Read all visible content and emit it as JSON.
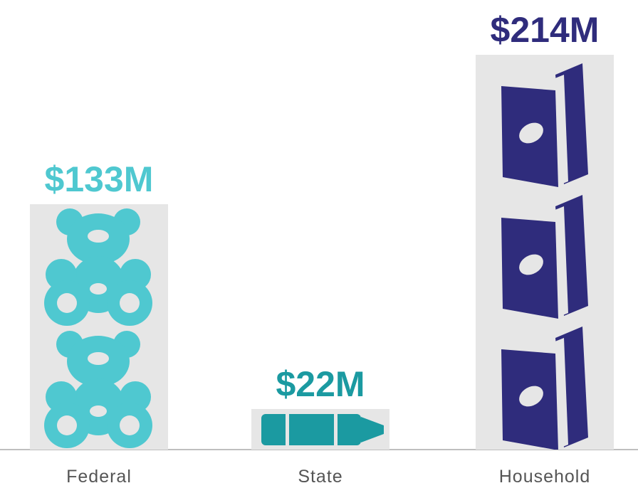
{
  "chart_data": {
    "type": "bar",
    "categories": [
      "Federal",
      "State",
      "Household"
    ],
    "values": [
      133,
      22,
      214
    ],
    "value_labels": [
      "$133M",
      "$22M",
      "$214M"
    ],
    "colors": [
      "#4fc8d0",
      "#1b9aa1",
      "#2f2c7c"
    ]
  }
}
